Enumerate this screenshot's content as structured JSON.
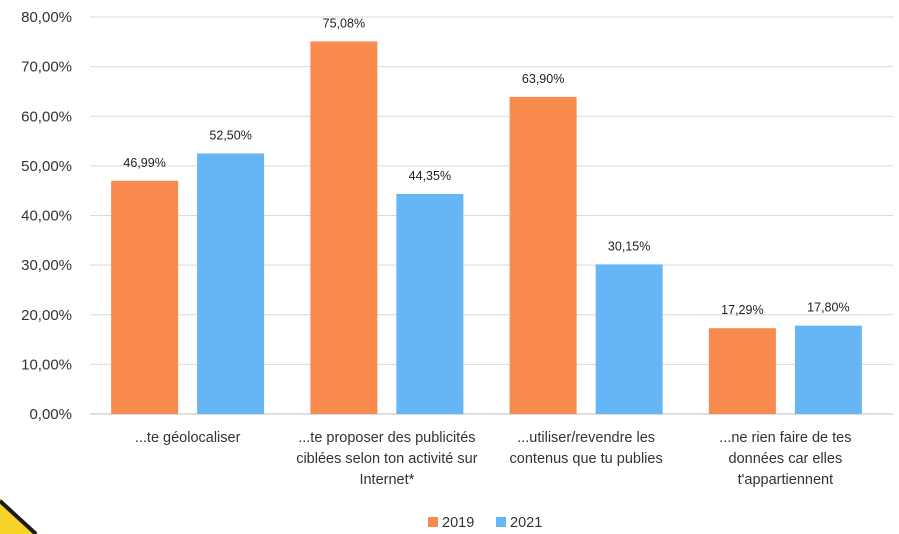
{
  "chart_data": {
    "type": "bar",
    "title": "",
    "xlabel": "",
    "ylabel": "",
    "ylim": [
      0,
      80
    ],
    "y_ticks": [
      "0,00%",
      "10,00%",
      "20,00%",
      "30,00%",
      "40,00%",
      "50,00%",
      "60,00%",
      "70,00%",
      "80,00%"
    ],
    "grid": true,
    "legend_position": "bottom",
    "categories": [
      [
        "...te géolocaliser"
      ],
      [
        "...te proposer des publicités",
        "ciblées selon ton activité sur",
        "Internet*"
      ],
      [
        "...utiliser/revendre les",
        "contenus que tu publies"
      ],
      [
        "...ne rien faire de tes",
        "données car elles",
        "t'appartiennent"
      ]
    ],
    "series": [
      {
        "name": "2019",
        "color": "#F98A4E",
        "values": [
          46.99,
          75.08,
          63.9,
          17.29
        ],
        "labels": [
          "46,99%",
          "75,08%",
          "63,90%",
          "17,29%"
        ]
      },
      {
        "name": "2021",
        "color": "#66B5F5",
        "values": [
          52.5,
          44.35,
          30.15,
          17.8
        ],
        "labels": [
          "52,50%",
          "44,35%",
          "30,15%",
          "17,80%"
        ]
      }
    ]
  },
  "decor": {
    "corner_color": "#F5D328",
    "corner_stroke": "#1a1a1a"
  }
}
